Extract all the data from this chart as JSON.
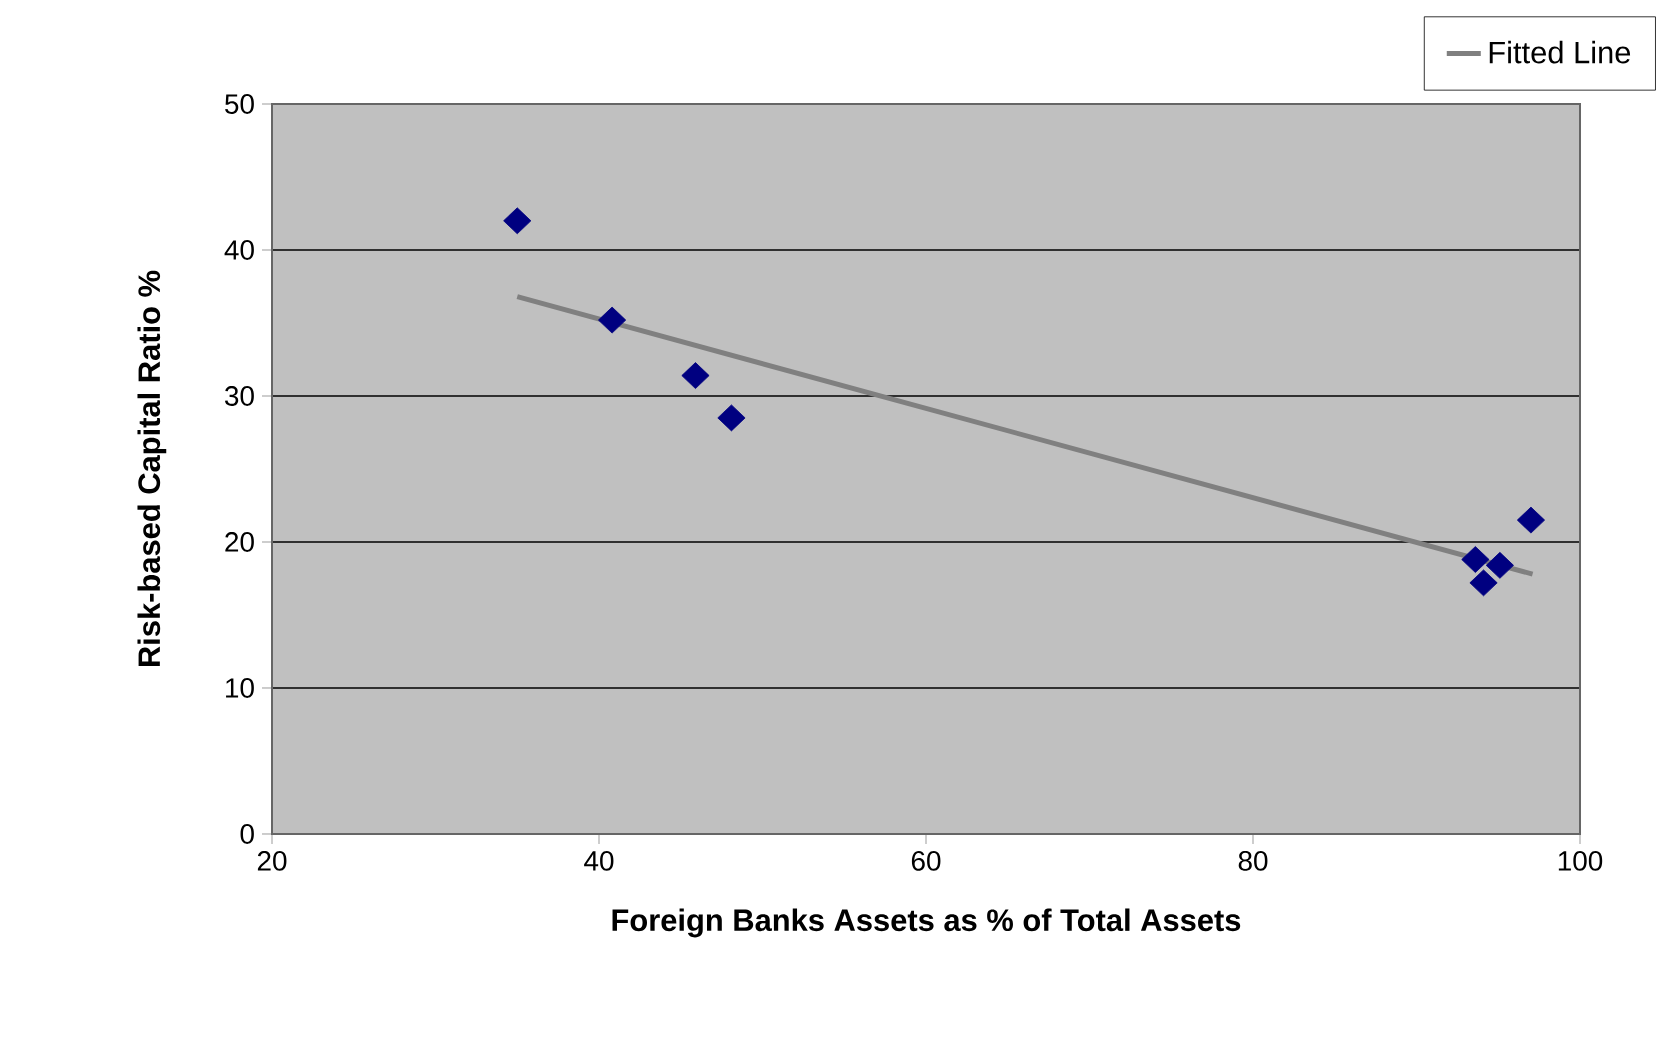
{
  "chart_data": {
    "type": "scatter",
    "xlabel": "Foreign Banks Assets as % of Total Assets",
    "ylabel": "Risk-based Capital Ratio %",
    "xlim": [
      20,
      100
    ],
    "xticks": [
      20,
      40,
      60,
      80,
      100
    ],
    "ylim": [
      0,
      50
    ],
    "yticks": [
      0,
      10,
      20,
      30,
      40,
      50
    ],
    "grid": "y",
    "legend": "top right",
    "series": [
      {
        "color": "#000080",
        "marker": "diamond",
        "x": [
          35.0,
          40.8,
          45.9,
          48.1,
          93.6,
          94.1,
          95.1,
          97.0
        ],
        "values": [
          42.0,
          35.2,
          31.4,
          28.5,
          18.8,
          17.2,
          18.4,
          21.5
        ]
      },
      {
        "type": "line",
        "name": "Fitted Line",
        "color": "#808080",
        "marker": "none",
        "line_style": "solid",
        "x": [
          35.0,
          97.1
        ],
        "values": [
          36.8,
          17.8
        ]
      }
    ]
  }
}
